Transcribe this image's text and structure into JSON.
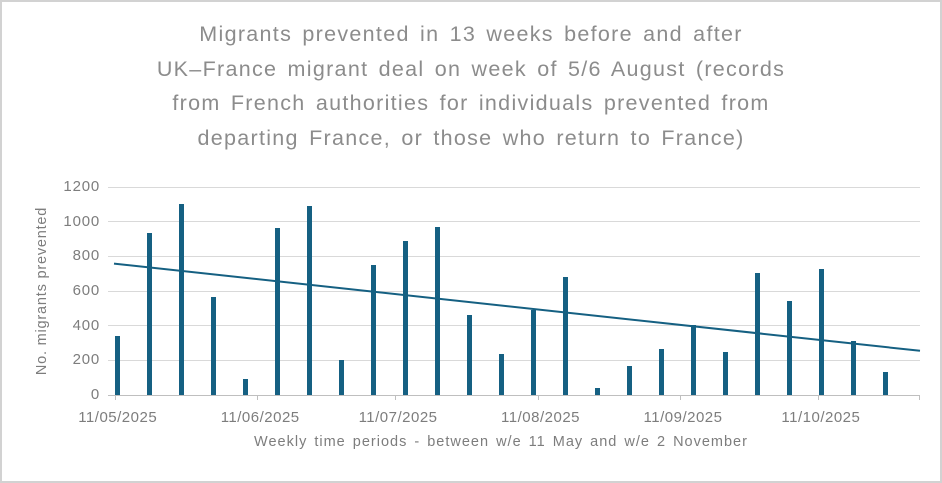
{
  "window": {
    "background": "#ffffff",
    "border_color": "#d2d2d2"
  },
  "chart_data": {
    "type": "bar",
    "title": "Migrants prevented in 13 weeks before and after UK–France migrant deal on week of 5/6 August (records from French authorities for individuals prevented from departing France, or those who return to France)",
    "title_lines": [
      "Migrants prevented in 13 weeks before and after",
      "UK–France migrant deal on week of 5/6 August (records",
      "from French authorities for individuals prevented from",
      "departing France, or those who return to France)"
    ],
    "xlabel": "Weekly time periods - between w/e 11 May and w/e 2 November",
    "ylabel": "No. migrants prevented",
    "ylim": [
      0,
      1200
    ],
    "y_tick_interval": 200,
    "y_tick_labels": [
      "0",
      "200",
      "400",
      "600",
      "800",
      "1000",
      "1200"
    ],
    "x_tick_labels": [
      "11/05/2025",
      "11/06/2025",
      "11/07/2025",
      "11/08/2025",
      "11/09/2025",
      "11/10/2025"
    ],
    "x_tick_day_offsets": [
      0,
      31,
      61,
      92,
      123,
      153
    ],
    "grid": true,
    "legend": false,
    "categories": [
      "11/05/2025",
      "18/05/2025",
      "25/05/2025",
      "01/06/2025",
      "08/06/2025",
      "15/06/2025",
      "22/06/2025",
      "29/06/2025",
      "06/07/2025",
      "13/07/2025",
      "20/07/2025",
      "27/07/2025",
      "03/08/2025",
      "10/08/2025",
      "17/08/2025",
      "24/08/2025",
      "31/08/2025",
      "07/09/2025",
      "14/09/2025",
      "21/09/2025",
      "28/09/2025",
      "05/10/2025",
      "12/10/2025",
      "19/10/2025",
      "26/10/2025",
      "02/11/2025"
    ],
    "values": [
      340,
      935,
      1100,
      565,
      90,
      965,
      1090,
      200,
      750,
      890,
      970,
      460,
      235,
      490,
      680,
      40,
      165,
      265,
      405,
      250,
      705,
      545,
      725,
      310,
      130,
      0
    ],
    "trendline": {
      "type": "linear",
      "start_value": 758,
      "end_value": 255
    },
    "colors": {
      "bar": "#156082",
      "trendline": "#156082",
      "gridline": "#d9d9d9",
      "axis_line": "#bfbfbf",
      "title_text": "#8c8c8c",
      "axis_text": "#7d7d7d"
    }
  }
}
